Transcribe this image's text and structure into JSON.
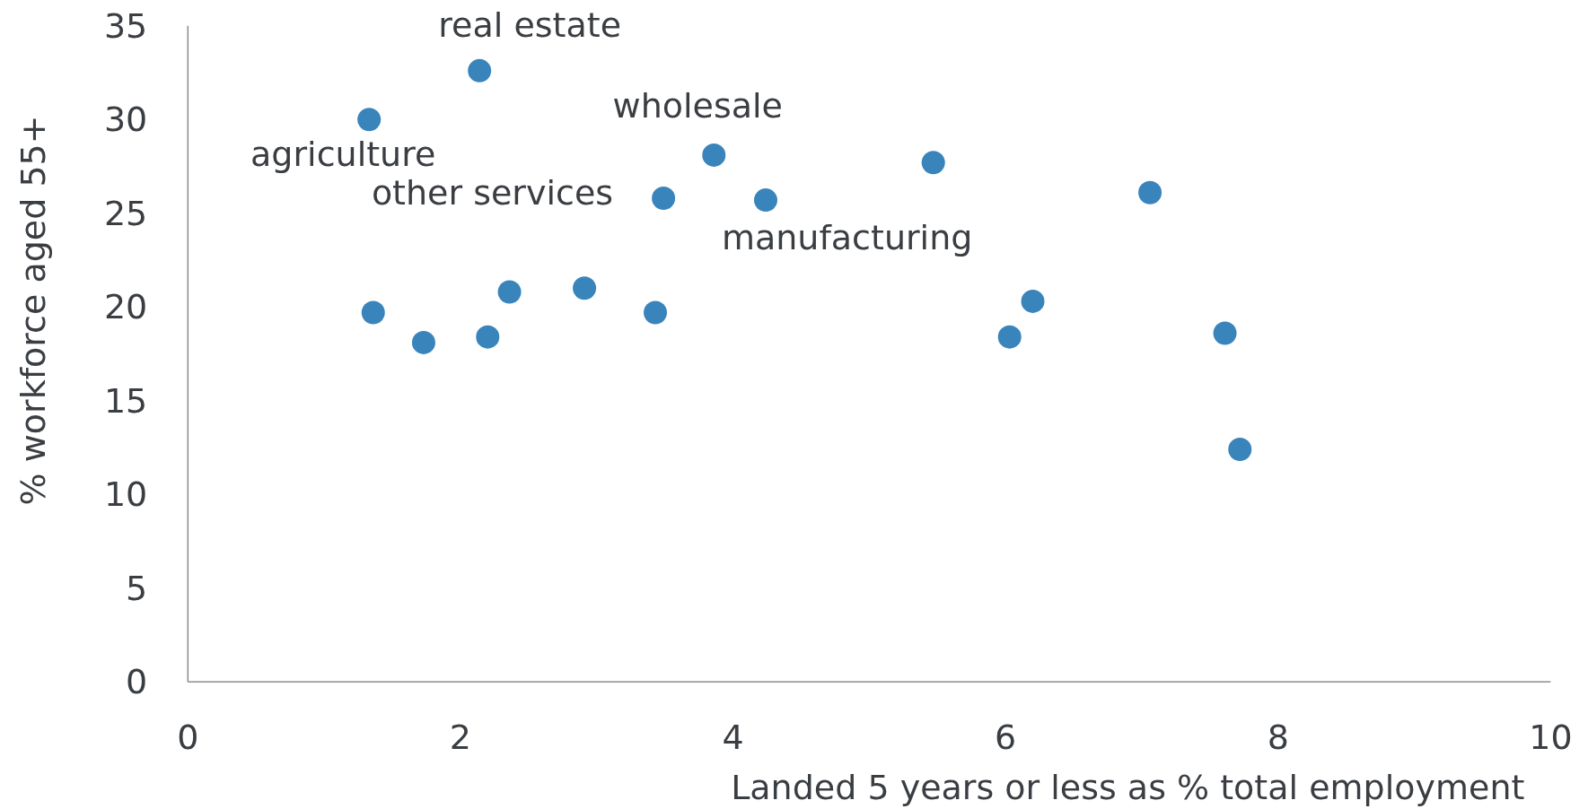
{
  "chart_data": {
    "type": "scatter",
    "xlabel": "Landed 5 years or less as % total employment",
    "ylabel": "% workforce aged 55+",
    "x": [
      1.33,
      1.36,
      1.73,
      2.14,
      2.2,
      2.36,
      2.91,
      3.43,
      3.49,
      3.86,
      4.24,
      5.47,
      6.03,
      6.2,
      7.06,
      7.61,
      7.72
    ],
    "values": [
      30.0,
      19.7,
      18.1,
      32.6,
      18.4,
      20.8,
      21.0,
      19.7,
      25.8,
      28.1,
      25.7,
      27.7,
      18.4,
      20.3,
      26.1,
      18.6,
      12.4
    ],
    "color": "#3a84bc",
    "marker": "circle",
    "xlim": [
      0,
      10
    ],
    "xticks": [
      0,
      2,
      4,
      6,
      8,
      10
    ],
    "ylim": [
      0,
      35
    ],
    "yticks": [
      0,
      5,
      10,
      15,
      20,
      25,
      30,
      35
    ],
    "annotations": [
      {
        "text": "real estate",
        "x": 2.14,
        "y": 32.6
      },
      {
        "text": "wholesale",
        "x": 3.86,
        "y": 28.1
      },
      {
        "text": "agriculture",
        "x": 1.33,
        "y": 30.0
      },
      {
        "text": "other services",
        "x": 3.49,
        "y": 25.8
      },
      {
        "text": "manufacturing",
        "x": 4.24,
        "y": 25.7
      }
    ]
  }
}
